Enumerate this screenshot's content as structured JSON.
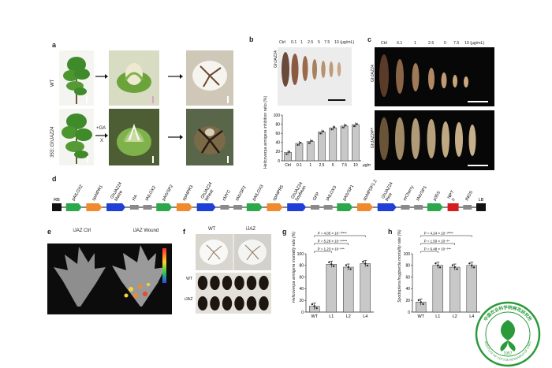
{
  "figure": {
    "panel_labels": [
      "a",
      "b",
      "c",
      "d",
      "e",
      "f",
      "g",
      "h"
    ],
    "a": {
      "row_labels": [
        "WT",
        "35S::GhJAZ24"
      ],
      "arrow_label_top": "+GA",
      "arrow_label_bottom": "X"
    },
    "b": {
      "concentrations_top": [
        "Ctrl",
        "0.1",
        "1",
        "2.5",
        "5",
        "7.5",
        "10 (μg/mL)"
      ],
      "photo_label": "GhJAZ24",
      "chart_data": {
        "type": "bar",
        "title": "",
        "categories": [
          "Ctrl",
          "0.1",
          "1",
          "2.5",
          "5",
          "7.5",
          "10"
        ],
        "values": [
          18,
          38,
          42,
          63,
          72,
          76,
          79
        ],
        "ylabel": "Helicoverpa armigera inhibition ratio (%)",
        "xlabel": "μg/mL",
        "ylim": [
          0,
          100
        ],
        "yticks": [
          "0",
          "20",
          "40",
          "60",
          "80",
          "100"
        ]
      }
    },
    "c": {
      "concentrations": [
        "Ctrl",
        "0.1",
        "1",
        "2.5",
        "5",
        "7.5",
        "10 (μg/mL)"
      ],
      "row_labels": [
        "GhJAZ24",
        "GhJAZ24ᴷᴷ"
      ]
    },
    "d": {
      "elements": [
        {
          "label": "RB",
          "color": "#111111"
        },
        {
          "label": "pAtLOX2",
          "color": "#2aa84a"
        },
        {
          "label": "spAtPR1",
          "color": "#f08a2c"
        },
        {
          "label": "GhJAZ24 Maize",
          "color": "#1f3fd6"
        },
        {
          "label": "HA",
          "color": "#8a8a8a"
        },
        {
          "label": "tAtLOX2",
          "color": "#8a8a8a"
        },
        {
          "label": "pAtVSP2",
          "color": "#2aa84a"
        },
        {
          "label": "spAtPR3",
          "color": "#f08a2c"
        },
        {
          "label": "GhJAZ24 Wheat",
          "color": "#1f3fd6"
        },
        {
          "label": "cMYC",
          "color": "#8a8a8a"
        },
        {
          "label": "tAtVSP2",
          "color": "#8a8a8a"
        },
        {
          "label": "pAtLOX3",
          "color": "#2aa84a"
        },
        {
          "label": "spAtPR5",
          "color": "#f08a2c"
        },
        {
          "label": "GhJAZ24 Soybean",
          "color": "#1f3fd6"
        },
        {
          "label": "GFP",
          "color": "#8a8a8a"
        },
        {
          "label": "tAtLOX3",
          "color": "#8a8a8a"
        },
        {
          "label": "pAtVSP1",
          "color": "#2aa84a"
        },
        {
          "label": "spAtPDF1.2",
          "color": "#f08a2c"
        },
        {
          "label": "GhJAZ24 Rice",
          "color": "#1f3fd6"
        },
        {
          "label": "mCherry",
          "color": "#8a8a8a"
        },
        {
          "label": "tAtVSP1",
          "color": "#8a8a8a"
        },
        {
          "label": "p35S",
          "color": "#2aa84a"
        },
        {
          "label": "NPT II",
          "color": "#d61c1c"
        },
        {
          "label": "tNOS",
          "color": "#8a8a8a"
        },
        {
          "label": "LB",
          "color": "#111111"
        }
      ]
    },
    "e": {
      "labels": [
        "iJAZ Ctrl",
        "iJAZ Wound"
      ]
    },
    "f": {
      "labels": [
        "WT",
        "iJAZ"
      ],
      "seed_row_labels": [
        "WT",
        "iJAZ"
      ]
    },
    "g": {
      "chart_data": {
        "type": "bar",
        "categories": [
          "WT",
          "L1",
          "L2",
          "L4"
        ],
        "values": [
          10,
          82,
          77,
          83
        ],
        "ylabel": "Helicoverpa armigera mortality rate (%)",
        "ylim": [
          0,
          100
        ],
        "yticks": [
          "0",
          "20",
          "40",
          "60",
          "80",
          "100"
        ],
        "annotations": [
          "P = 4.05 × 10⁻¹⁰***",
          "P = 5.28 × 10⁻⁹****",
          "P = 1.23 × 10⁻⁹**"
        ]
      }
    },
    "h": {
      "chart_data": {
        "type": "bar",
        "categories": [
          "WT",
          "L1",
          "L2",
          "L4"
        ],
        "values": [
          17,
          80,
          77,
          80
        ],
        "ylabel": "Spodoptera frugiperda mortality rate (%)",
        "ylim": [
          0,
          100
        ],
        "yticks": [
          "0",
          "20",
          "40",
          "60",
          "80",
          "100"
        ],
        "annotations": [
          "P = 4.24 × 10⁻¹⁰***",
          "P = 1.50 × 10⁻⁸*",
          "P = 6.48 × 10⁻⁹**"
        ]
      }
    },
    "seal": {
      "text_top": "中国农业科学院棉花研究所",
      "text_bottom": "INSTITUTE OF COTTON RESEARCH OF CAAS",
      "year": "1957",
      "color": "#2a9a3a"
    }
  }
}
